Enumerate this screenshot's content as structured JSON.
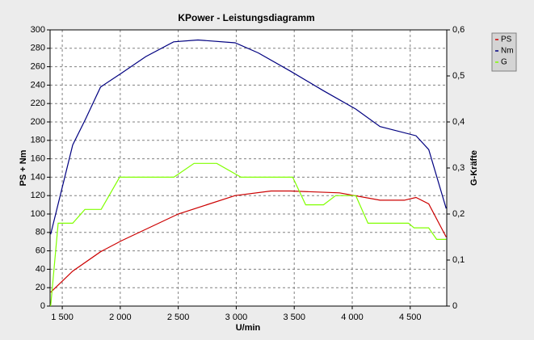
{
  "chart_data": {
    "type": "line",
    "title": "KPower - Leistungsdiagramm",
    "x_label": "U/min",
    "y_label": "PS + Nm",
    "y2_label": "G-Kräfte",
    "xlim": [
      1395,
      4815
    ],
    "xticks": [
      {
        "value": 1500,
        "label": "1 500"
      },
      {
        "value": 2000,
        "label": "2 000"
      },
      {
        "value": 2500,
        "label": "2 500"
      },
      {
        "value": 3000,
        "label": "3 000"
      },
      {
        "value": 3500,
        "label": "3 500"
      },
      {
        "value": 4000,
        "label": "4 000"
      },
      {
        "value": 4500,
        "label": "4 500"
      }
    ],
    "ylim": [
      0,
      300
    ],
    "yticks": [
      0,
      20,
      40,
      60,
      80,
      100,
      120,
      140,
      160,
      180,
      200,
      220,
      240,
      260,
      280,
      300
    ],
    "y2lim": [
      0,
      0.6
    ],
    "y2ticks": [
      0,
      {
        "value": 0.1,
        "label": "0,1"
      },
      {
        "value": 0.2,
        "label": "0,2"
      },
      {
        "value": 0.3,
        "label": "0,3"
      },
      {
        "value": 0.4,
        "label": "0,4"
      },
      {
        "value": 0.5,
        "label": "0,5"
      },
      {
        "value": 0.6,
        "label": "0,6"
      }
    ],
    "grid": true,
    "series": [
      {
        "name": "PS",
        "color": "#cc0000",
        "x": [
          1400,
          1590,
          1830,
          2010,
          2500,
          2990,
          3300,
          3470,
          3890,
          4240,
          4450,
          4550,
          4660,
          4810
        ],
        "values": [
          15,
          38,
          59,
          71,
          100,
          120,
          125,
          125,
          123,
          115,
          115,
          118,
          111,
          75
        ]
      },
      {
        "name": "Nm",
        "color": "#000080",
        "x": [
          1400,
          1590,
          1700,
          1830,
          2010,
          2220,
          2460,
          2670,
          2990,
          3190,
          3470,
          3750,
          4030,
          4240,
          4550,
          4660,
          4810
        ],
        "values": [
          78,
          175,
          203,
          238,
          253,
          271,
          287,
          289,
          286,
          275,
          255,
          234,
          214,
          195,
          185,
          170,
          106
        ]
      },
      {
        "name": "G",
        "color": "#80ff00",
        "axis": "y2",
        "x": [
          1400,
          1465,
          1590,
          1695,
          1835,
          1995,
          2462,
          2636,
          2832,
          3041,
          3487,
          3599,
          3752,
          3857,
          4031,
          4136,
          4485,
          4533,
          4659,
          4728,
          4810
        ],
        "values": [
          0,
          0.18,
          0.18,
          0.21,
          0.21,
          0.28,
          0.28,
          0.31,
          0.31,
          0.28,
          0.28,
          0.22,
          0.22,
          0.24,
          0.24,
          0.18,
          0.18,
          0.17,
          0.17,
          0.145,
          0.145
        ]
      }
    ]
  }
}
